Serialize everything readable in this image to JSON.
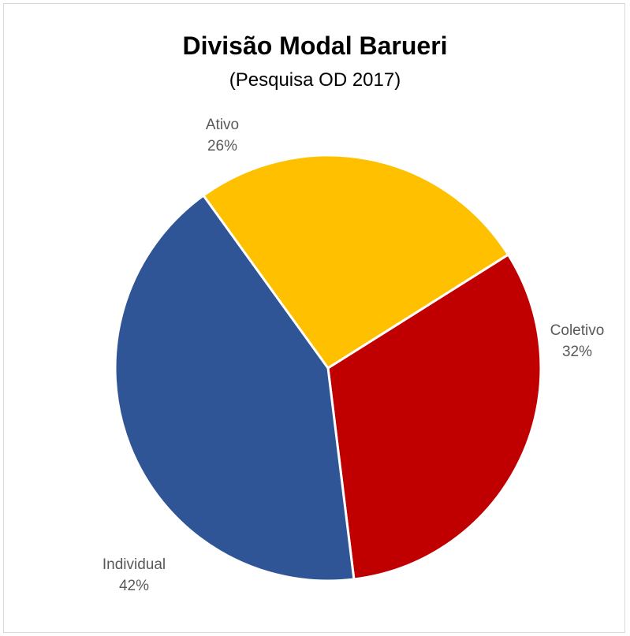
{
  "chart_data": {
    "type": "pie",
    "title": "Divisão Modal Barueri",
    "subtitle": "(Pesquisa OD 2017)",
    "categories": [
      "Coletivo",
      "Individual",
      "Ativo"
    ],
    "values": [
      32,
      42,
      26
    ],
    "value_labels": [
      "32%",
      "42%",
      "26%"
    ],
    "colors": [
      "#c00000",
      "#2f5597",
      "#ffc000"
    ],
    "legend": "none",
    "data_labels": "outside-end"
  }
}
